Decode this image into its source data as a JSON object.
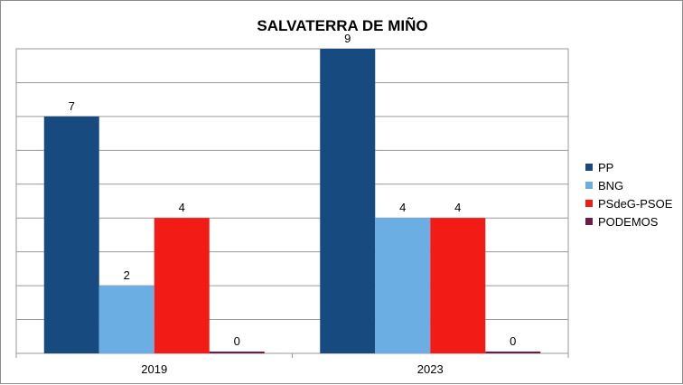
{
  "chart_data": {
    "type": "bar",
    "title": "SALVATERRA DE MIÑO",
    "xlabel": "",
    "ylabel": "",
    "categories": [
      "2019",
      "2023"
    ],
    "ylim": [
      0,
      9
    ],
    "grid": true,
    "legend_position": "right",
    "series": [
      {
        "name": "PP",
        "color": "#174a7e",
        "values": [
          7,
          9
        ]
      },
      {
        "name": "BNG",
        "color": "#6aaee4",
        "values": [
          2,
          4
        ]
      },
      {
        "name": "PSdeG-PSOE",
        "color": "#f21b16",
        "values": [
          4,
          4
        ]
      },
      {
        "name": "PODEMOS",
        "color": "#6b1c4a",
        "values": [
          0,
          0
        ]
      }
    ]
  }
}
